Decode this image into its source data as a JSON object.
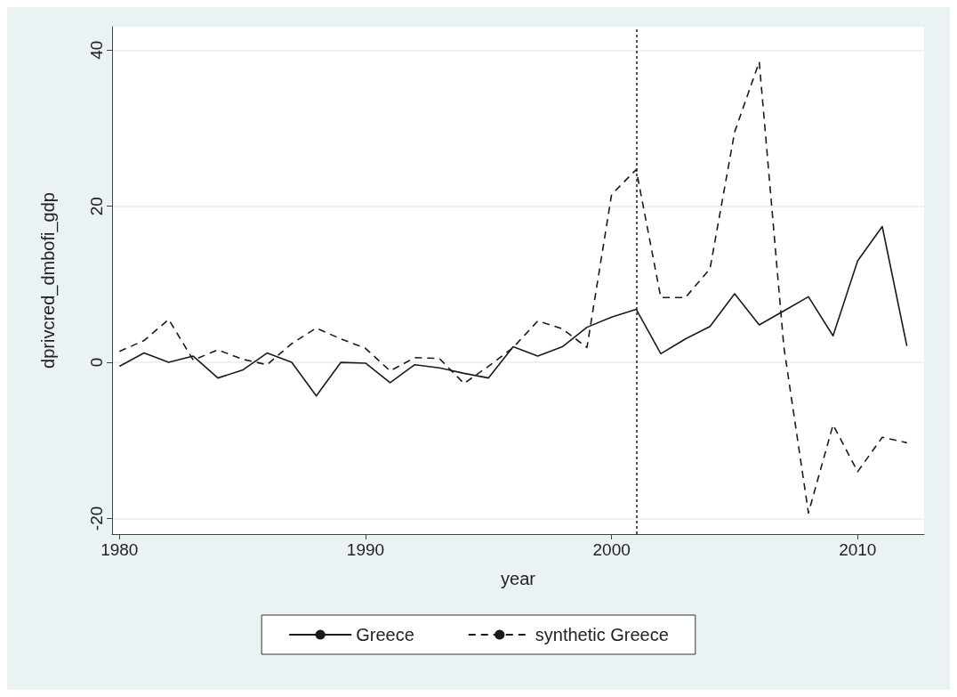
{
  "chart_data": {
    "type": "line",
    "xlabel": "year",
    "ylabel": "dprivcred_dmbofi_gdp",
    "x": [
      1980,
      1981,
      1982,
      1983,
      1984,
      1985,
      1986,
      1987,
      1988,
      1989,
      1990,
      1991,
      1992,
      1993,
      1994,
      1995,
      1996,
      1997,
      1998,
      1999,
      2000,
      2001,
      2002,
      2003,
      2004,
      2005,
      2006,
      2007,
      2008,
      2009,
      2010,
      2011,
      2012
    ],
    "series": [
      {
        "name": "Greece",
        "color": "#1a1a1a",
        "line_style": "solid",
        "values": [
          -0.5,
          1.2,
          0,
          0.8,
          -2,
          -1,
          1.2,
          0,
          -4.3,
          0,
          -0.1,
          -2.6,
          -0.3,
          -0.7,
          -1.4,
          -2,
          2,
          0.8,
          2,
          4.5,
          5.8,
          6.8,
          1.1,
          3,
          4.6,
          8.8,
          4.8,
          6.6,
          8.4,
          3.4,
          13,
          17.4,
          2.1
        ]
      },
      {
        "name": "synthetic Greece",
        "color": "#1a1a1a",
        "line_style": "dashed",
        "values": [
          1.4,
          2.8,
          5.5,
          0.3,
          1.6,
          0.4,
          -0.3,
          2.4,
          4.4,
          3,
          1.8,
          -1.1,
          0.6,
          0.5,
          -2.7,
          -0.5,
          1.9,
          5.3,
          4.3,
          1.9,
          21.5,
          24.7,
          8.3,
          8.3,
          12,
          29.5,
          38.5,
          2,
          -19.3,
          -8,
          -14,
          -9.6,
          -10.3
        ]
      }
    ],
    "xlim": [
      1979.7,
      2012.7
    ],
    "xticks": [
      1980,
      1990,
      2000,
      2010
    ],
    "ylim": [
      -22,
      43
    ],
    "yticks": [
      -20,
      0,
      20,
      40
    ],
    "ref_lines": [
      {
        "axis": "x",
        "value": 2001,
        "color": "#1a1a1a",
        "line_style": "dotted"
      }
    ],
    "grid": "y",
    "legend": "bottom",
    "marker": "none"
  }
}
